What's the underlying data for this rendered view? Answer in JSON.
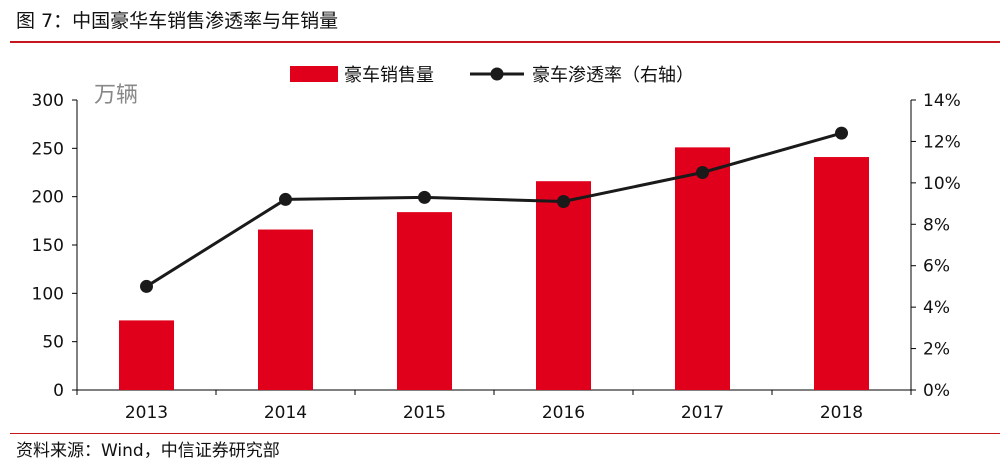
{
  "figure": {
    "title": "图 7：中国豪华车销售渗透率与年销量",
    "source": "资料来源：Wind，中信证券研究部"
  },
  "colors": {
    "bar": "#e0001b",
    "line": "#1a1a1a",
    "rule": "#c6161e"
  },
  "chart_data": {
    "type": "bar",
    "title": "",
    "categories": [
      "2013",
      "2014",
      "2015",
      "2016",
      "2017",
      "2018"
    ],
    "series": [
      {
        "name": "豪车销售量",
        "type": "bar",
        "axis": "left",
        "values": [
          72,
          166,
          184,
          216,
          251,
          241
        ]
      },
      {
        "name": "豪车渗透率（右轴）",
        "type": "line",
        "axis": "right",
        "values": [
          5.0,
          9.2,
          9.3,
          9.1,
          10.5,
          12.4
        ]
      }
    ],
    "y_left": {
      "label": "万辆",
      "lim": [
        0,
        300
      ],
      "ticks": [
        "0",
        "50",
        "100",
        "150",
        "200",
        "250",
        "300"
      ]
    },
    "y_right": {
      "lim": [
        0,
        14
      ],
      "ticks": [
        "0%",
        "2%",
        "4%",
        "6%",
        "8%",
        "10%",
        "12%",
        "14%"
      ]
    },
    "grid": false,
    "legend": "top-center"
  }
}
